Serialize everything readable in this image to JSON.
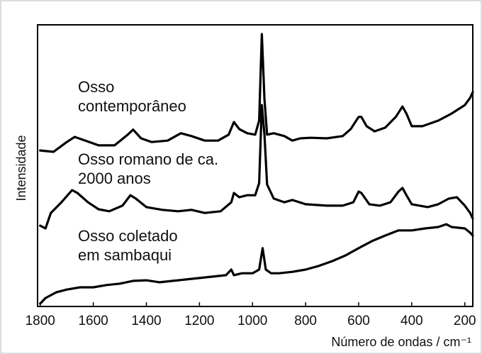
{
  "chart_data": {
    "type": "line",
    "ylabel": "Intensidade",
    "xlabel": "Número de ondas / cm⁻¹",
    "annotations": [
      "Osso",
      "contemporâneo",
      "Osso romano de ca.",
      "2000 anos",
      "Osso coletado",
      "em sambaqui"
    ],
    "xlim": [
      1810,
      170
    ],
    "ylim": [
      0,
      100
    ],
    "xticks": [
      1800,
      1600,
      1400,
      1200,
      1000,
      800,
      600,
      400,
      200
    ],
    "series": [
      {
        "color": "#000000",
        "x": [
          1800,
          1750,
          1700,
          1670,
          1630,
          1580,
          1520,
          1470,
          1450,
          1420,
          1380,
          1320,
          1270,
          1230,
          1180,
          1130,
          1090,
          1070,
          1050,
          1020,
          990,
          975,
          965,
          955,
          945,
          920,
          880,
          850,
          820,
          780,
          720,
          660,
          630,
          600,
          590,
          570,
          540,
          500,
          460,
          435,
          420,
          400,
          360,
          300,
          250,
          200,
          180,
          170
        ],
        "values": [
          55.4,
          54.9,
          58.4,
          60.2,
          58.9,
          57.2,
          57.2,
          61.0,
          62.8,
          59.7,
          58.4,
          58.9,
          61.5,
          60.5,
          58.9,
          58.9,
          61.0,
          65.5,
          63.0,
          61.5,
          61.0,
          66.0,
          96.7,
          73.6,
          61.0,
          61.5,
          60.5,
          58.9,
          59.7,
          59.9,
          59.7,
          60.5,
          63.0,
          67.3,
          67.3,
          64.0,
          62.2,
          63.5,
          67.3,
          71.0,
          68.5,
          64.0,
          64.0,
          66.0,
          68.5,
          71.5,
          74.1,
          76.1
        ]
      },
      {
        "color": "#000000",
        "x": [
          1800,
          1780,
          1760,
          1720,
          1680,
          1660,
          1620,
          1580,
          1540,
          1490,
          1460,
          1440,
          1400,
          1340,
          1280,
          1230,
          1180,
          1120,
          1080,
          1070,
          1050,
          1020,
          990,
          975,
          965,
          955,
          945,
          920,
          880,
          850,
          800,
          720,
          660,
          620,
          600,
          590,
          560,
          520,
          480,
          450,
          435,
          420,
          400,
          340,
          300,
          260,
          230,
          200,
          180,
          170
        ],
        "values": [
          28.7,
          27.7,
          33.2,
          37.0,
          41.3,
          40.3,
          37.0,
          34.5,
          33.8,
          35.8,
          39.5,
          38.3,
          35.3,
          34.3,
          33.8,
          34.3,
          33.2,
          33.8,
          37.0,
          40.3,
          38.8,
          39.5,
          39.5,
          43.8,
          71.5,
          61.0,
          43.3,
          38.3,
          37.0,
          37.8,
          36.3,
          35.8,
          35.8,
          37.0,
          40.8,
          40.3,
          36.3,
          35.8,
          37.0,
          40.8,
          42.1,
          39.5,
          36.3,
          35.3,
          36.3,
          38.3,
          38.8,
          35.8,
          33.2,
          31.2
        ]
      },
      {
        "color": "#000000",
        "x": [
          1800,
          1780,
          1740,
          1700,
          1650,
          1600,
          1550,
          1500,
          1450,
          1400,
          1350,
          1300,
          1250,
          1200,
          1150,
          1100,
          1080,
          1070,
          1040,
          1000,
          975,
          962,
          950,
          930,
          900,
          850,
          800,
          750,
          700,
          650,
          600,
          550,
          500,
          450,
          400,
          350,
          300,
          270,
          250,
          200,
          180,
          170
        ],
        "values": [
          1.0,
          3.0,
          5.0,
          6.0,
          6.8,
          6.8,
          7.6,
          8.1,
          9.1,
          9.3,
          8.6,
          9.1,
          9.6,
          10.1,
          10.6,
          11.1,
          13.1,
          11.1,
          11.8,
          11.8,
          13.1,
          20.7,
          13.1,
          11.8,
          11.8,
          12.3,
          13.1,
          14.4,
          16.1,
          18.1,
          20.7,
          23.2,
          25.2,
          27.0,
          27.0,
          27.7,
          28.2,
          29.2,
          28.2,
          27.7,
          26.2,
          25.2
        ]
      }
    ]
  }
}
